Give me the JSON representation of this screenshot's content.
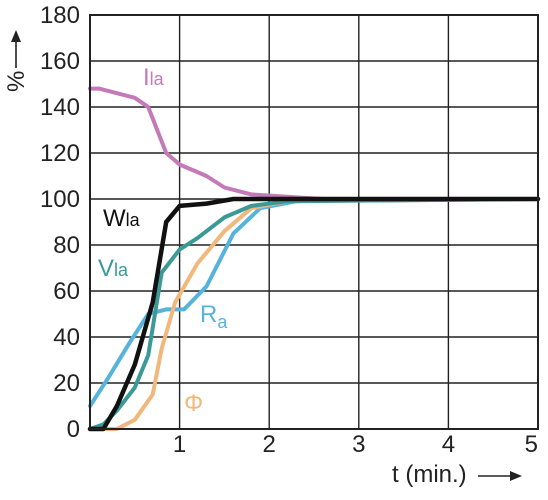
{
  "chart_data": {
    "type": "line",
    "title": "",
    "xlabel": "t (min.)",
    "ylabel": "%",
    "xlim": [
      0,
      5
    ],
    "ylim": [
      0,
      180
    ],
    "x_ticks": [
      "0",
      "1",
      "2",
      "3",
      "4",
      "5"
    ],
    "y_ticks": [
      "0",
      "20",
      "40",
      "60",
      "80",
      "100",
      "120",
      "140",
      "160",
      "180"
    ],
    "grid": true,
    "legend": "none",
    "series": [
      {
        "name": "Ila",
        "label_main": "I",
        "label_sub": "la",
        "color": "#c47ab8",
        "points": [
          [
            0,
            148
          ],
          [
            0.1,
            148
          ],
          [
            0.3,
            146
          ],
          [
            0.5,
            144
          ],
          [
            0.65,
            140
          ],
          [
            0.75,
            130
          ],
          [
            0.85,
            120
          ],
          [
            1.0,
            115
          ],
          [
            1.3,
            110
          ],
          [
            1.5,
            105
          ],
          [
            1.8,
            102
          ],
          [
            2.2,
            101
          ],
          [
            2.6,
            100
          ],
          [
            5,
            100
          ]
        ]
      },
      {
        "name": "Wla",
        "label_main": "W",
        "label_sub": "la",
        "color": "#111111",
        "points": [
          [
            0,
            0
          ],
          [
            0.15,
            0
          ],
          [
            0.3,
            10
          ],
          [
            0.5,
            28
          ],
          [
            0.7,
            55
          ],
          [
            0.85,
            90
          ],
          [
            1.0,
            97
          ],
          [
            1.3,
            98
          ],
          [
            1.6,
            100
          ],
          [
            5,
            100
          ]
        ]
      },
      {
        "name": "Vla",
        "label_main": "V",
        "label_sub": "la",
        "color": "#3a9a98",
        "points": [
          [
            0,
            0
          ],
          [
            0.15,
            2
          ],
          [
            0.3,
            8
          ],
          [
            0.5,
            18
          ],
          [
            0.65,
            32
          ],
          [
            0.8,
            68
          ],
          [
            1.0,
            78
          ],
          [
            1.2,
            83
          ],
          [
            1.5,
            92
          ],
          [
            1.8,
            97
          ],
          [
            2.2,
            99
          ],
          [
            5,
            100
          ]
        ]
      },
      {
        "name": "Ra",
        "label_main": "R",
        "label_sub": "a",
        "color": "#56b4dc",
        "points": [
          [
            0,
            10
          ],
          [
            0.2,
            22
          ],
          [
            0.45,
            38
          ],
          [
            0.65,
            50
          ],
          [
            0.85,
            52
          ],
          [
            1.05,
            52
          ],
          [
            1.3,
            62
          ],
          [
            1.6,
            85
          ],
          [
            1.9,
            96
          ],
          [
            2.3,
            99
          ],
          [
            2.8,
            100
          ],
          [
            5,
            100
          ]
        ]
      },
      {
        "name": "Φ",
        "label_main": "Φ",
        "label_sub": "",
        "color": "#f2b77a",
        "points": [
          [
            0,
            0
          ],
          [
            0.3,
            0
          ],
          [
            0.5,
            4
          ],
          [
            0.7,
            15
          ],
          [
            0.8,
            35
          ],
          [
            0.95,
            55
          ],
          [
            1.2,
            72
          ],
          [
            1.5,
            86
          ],
          [
            1.8,
            96
          ],
          [
            2.2,
            99
          ],
          [
            5,
            100
          ]
        ]
      }
    ]
  }
}
